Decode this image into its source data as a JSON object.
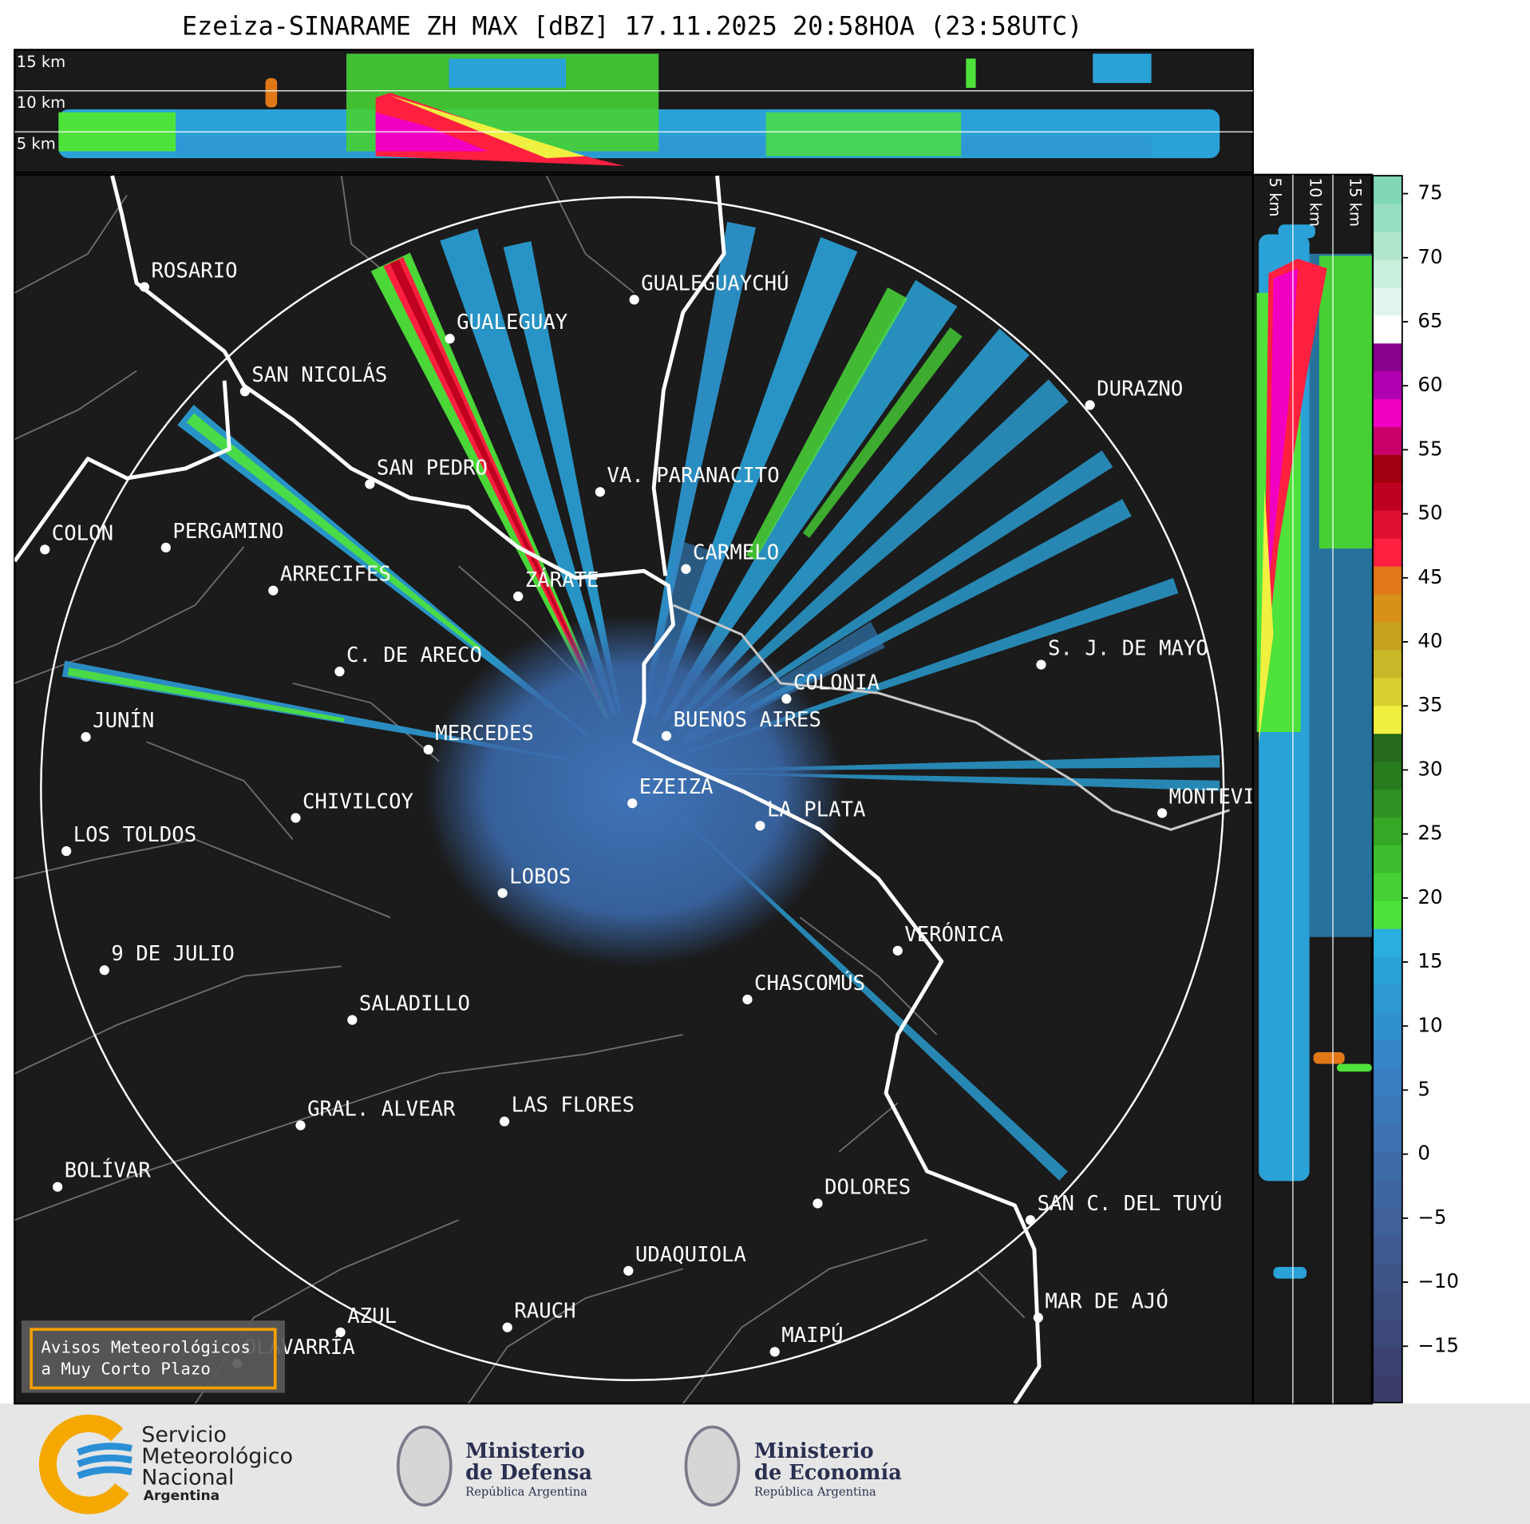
{
  "title": "Ezeiza-SINARAME ZH MAX [dBZ] 17.11.2025 20:58HOA (23:58UTC)",
  "cities": [
    "ROSARIO",
    "GUALEGUAYCHÚ",
    "GUALEGUAY",
    "SAN NICOLÁS",
    "DURAZNO",
    "SAN PEDRO",
    "VA. PARANACITO",
    "COLON",
    "PERGAMINO",
    "CARMELO",
    "ARRECIFES",
    "ZÁRATE",
    "C. DE ARECO",
    "S. J. DE MAYO",
    "COLONIA",
    "JUNÍN",
    "BUENOS AIRES",
    "MERCEDES",
    "EZEIZA",
    "CHIVILCOY",
    "MONTEVIDEO",
    "LA PLATA",
    "LOS TOLDOS",
    "LOBOS",
    "VERÓNICA",
    "9 DE JULIO",
    "CHASCOMÚS",
    "SALADILLO",
    "GRAL. ALVEAR",
    "LAS FLORES",
    "BOLÍVAR",
    "DOLORES",
    "SAN C. DEL TUYÚ",
    "UDAQUIOLA",
    "MAR DE AJÓ",
    "RAUCH",
    "AZUL",
    "MAIPÚ",
    "OLAVARRÍA"
  ],
  "height_panels": {
    "top_labels": [
      "15 km",
      "10 km",
      "5 km"
    ],
    "side_labels": [
      "5 km",
      "10 km",
      "15 km"
    ]
  },
  "colorbar": {
    "range": [
      -19.4,
      76.4
    ],
    "ticks": [
      {
        "value": -15,
        "label": "−15"
      },
      {
        "value": -10,
        "label": "−10"
      },
      {
        "value": -5,
        "label": "−5"
      },
      0,
      5,
      10,
      15,
      20,
      25,
      30,
      35,
      40,
      45,
      50,
      55,
      60,
      65,
      70,
      75
    ],
    "colors": [
      "#3a3d68",
      "#3b4270",
      "#3c4878",
      "#3d4e80",
      "#3e5488",
      "#3f5a90",
      "#3f6098",
      "#3f66a0",
      "#3e6ca8",
      "#3c72b0",
      "#3a78b8",
      "#387ec0",
      "#3585c8",
      "#3090cf",
      "#2d99d4",
      "#2aa2d8",
      "#2aafe0",
      "#4ee23a",
      "#46d034",
      "#3ebe2e",
      "#36a828",
      "#2e9222",
      "#287c1e",
      "#246a1a",
      "#f0f040",
      "#d8d030",
      "#c8b828",
      "#c8a020",
      "#d89018",
      "#e07818",
      "#ff2040",
      "#e01030",
      "#c00020",
      "#a00010",
      "#c8006a",
      "#f000c0",
      "#b000b0",
      "#88008c",
      "#ffffff",
      "#e0f5ec",
      "#c8eedc",
      "#b0e6cc",
      "#98dec0",
      "#80d8b4"
    ]
  },
  "notice": {
    "lines": [
      "Avisos Meteorológicos",
      "a Muy Corto Plazo"
    ]
  },
  "logos": {
    "smn": [
      "Servicio",
      "Meteorológico",
      "Nacional",
      "Argentina"
    ],
    "defensa": [
      "Ministerio",
      "de Defensa",
      "República Argentina"
    ],
    "economia": [
      "Ministerio",
      "de Economía",
      "República Argentina"
    ]
  }
}
